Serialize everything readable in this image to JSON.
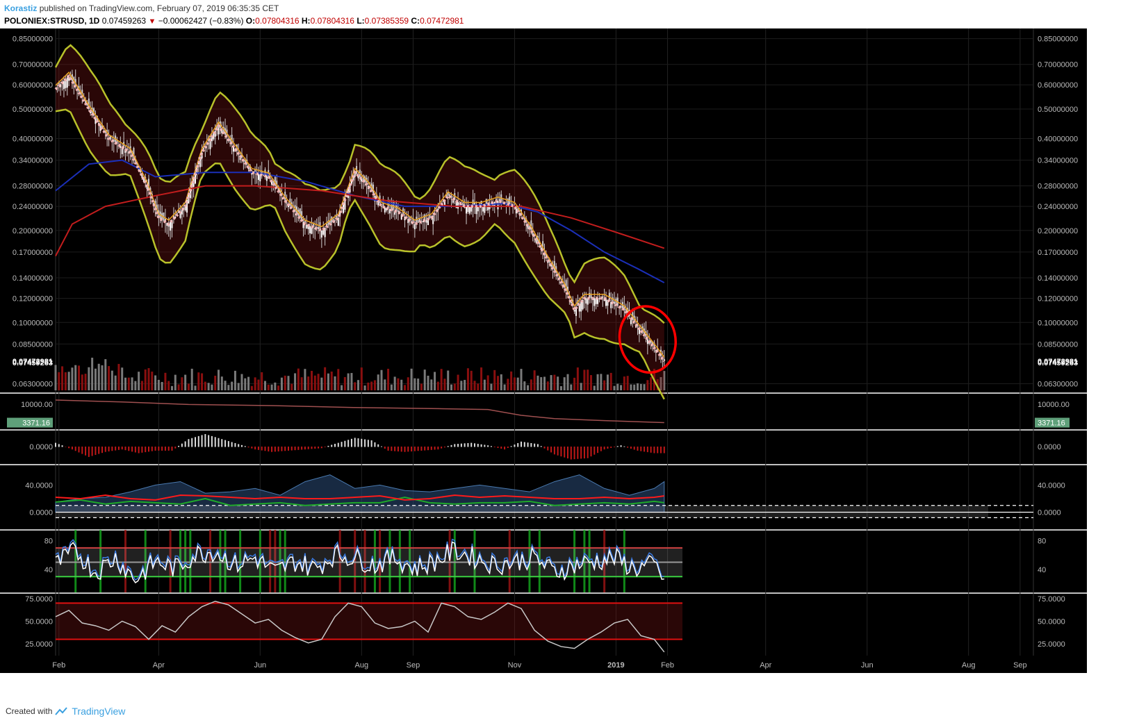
{
  "header": {
    "author": "Korastiz",
    "published_text": "published on TradingView.com, February 07, 2019 06:35:35 CET",
    "symbol": "POLONIEX:STRUSD, 1D",
    "last": "0.07459263",
    "change": "−0.00062427 (−0.83%)",
    "open_label": "O:",
    "open": "0.07804316",
    "high_label": "H:",
    "high": "0.07804316",
    "low_label": "L:",
    "low": "0.07385359",
    "close_label": "C:",
    "close": "0.07472981"
  },
  "footer": {
    "created_with": "Created with",
    "brand": "TradingView"
  },
  "colors": {
    "background": "#000000",
    "up": "#ffffff",
    "down": "#d0d0d0",
    "envelope": "#b8c12a",
    "ma_blue": "#1b2fb8",
    "ma_red": "#c21d1d",
    "center_line": "#f2b6b6",
    "orange": "#e6a020",
    "annotation": "#ff0000"
  },
  "chart_data": [
    {
      "type": "line",
      "pane": "price",
      "scale": "log",
      "ylim": [
        0.059,
        0.88
      ],
      "price_ticks": [
        "0.85000000",
        "0.70000000",
        "0.60000000",
        "0.50000000",
        "0.40000000",
        "0.34000000",
        "0.28000000",
        "0.24000000",
        "0.20000000",
        "0.17000000",
        "0.14000000",
        "0.12000000",
        "0.10000000",
        "0.08500000",
        "0.06300000"
      ],
      "price_tick_values": [
        0.85,
        0.7,
        0.6,
        0.5,
        0.4,
        0.34,
        0.28,
        0.24,
        0.2,
        0.17,
        0.14,
        0.12,
        0.1,
        0.085,
        0.063
      ],
      "last_labels": [
        "0.07472981",
        "0.07459263"
      ],
      "last_label_values": [
        0.0747,
        0.0739
      ],
      "x_labels": [
        "Feb",
        "Apr",
        "Jun",
        "Aug",
        "Sep",
        "Nov",
        "2019",
        "Feb",
        "Apr",
        "Jun",
        "Aug",
        "Sep"
      ],
      "x_label_days": [
        2,
        62,
        123,
        184,
        215,
        276,
        337,
        368,
        427,
        488,
        549,
        580
      ],
      "price_x": [
        0,
        8,
        20,
        32,
        45,
        55,
        62,
        68,
        78,
        88,
        98,
        108,
        118,
        128,
        138,
        150,
        160,
        170,
        180,
        188,
        196,
        206,
        216,
        226,
        236,
        246,
        256,
        266,
        276,
        286,
        296,
        306,
        312,
        318,
        324,
        330,
        336,
        342,
        348,
        356,
        362,
        366
      ],
      "close": [
        0.58,
        0.64,
        0.5,
        0.4,
        0.36,
        0.28,
        0.22,
        0.21,
        0.24,
        0.36,
        0.44,
        0.37,
        0.31,
        0.3,
        0.25,
        0.21,
        0.2,
        0.22,
        0.31,
        0.28,
        0.24,
        0.23,
        0.21,
        0.22,
        0.26,
        0.24,
        0.24,
        0.25,
        0.24,
        0.2,
        0.16,
        0.13,
        0.11,
        0.12,
        0.12,
        0.12,
        0.115,
        0.11,
        0.1,
        0.088,
        0.08,
        0.0747
      ],
      "series_ma_blue_x": [
        0,
        20,
        40,
        60,
        90,
        120,
        150,
        180,
        210,
        240,
        270,
        290,
        310,
        330,
        350,
        366
      ],
      "series_ma_blue": [
        0.27,
        0.33,
        0.34,
        0.3,
        0.31,
        0.31,
        0.29,
        0.26,
        0.24,
        0.24,
        0.245,
        0.23,
        0.2,
        0.17,
        0.15,
        0.135
      ],
      "series_ma_red_x": [
        0,
        10,
        30,
        60,
        90,
        120,
        160,
        200,
        240,
        280,
        310,
        340,
        366
      ],
      "series_ma_red": [
        0.165,
        0.21,
        0.24,
        0.26,
        0.28,
        0.28,
        0.27,
        0.25,
        0.24,
        0.24,
        0.22,
        0.195,
        0.175
      ],
      "annotation": "ellipse"
    },
    {
      "type": "bar",
      "pane": "indicator-1",
      "tick_labels": [
        "10000.00"
      ],
      "last_value": "3371.16",
      "line_x": [
        0,
        40,
        80,
        130,
        180,
        230,
        260,
        280,
        300,
        330,
        366
      ],
      "values": [
        11500,
        10800,
        9900,
        9500,
        8800,
        8400,
        8100,
        6000,
        4800,
        4100,
        3371.16
      ]
    },
    {
      "type": "bar",
      "pane": "histogram",
      "tick_labels": [
        "0.0000"
      ],
      "x": [
        0,
        10,
        20,
        30,
        40,
        50,
        60,
        70,
        80,
        90,
        100,
        110,
        120,
        130,
        140,
        150,
        160,
        170,
        180,
        190,
        200,
        210,
        220,
        230,
        240,
        250,
        260,
        270,
        280,
        290,
        300,
        310,
        320,
        330,
        340,
        350,
        360,
        366
      ],
      "values": [
        0.3,
        -0.2,
        -0.8,
        -0.4,
        -0.2,
        -0.5,
        -0.3,
        -0.3,
        0.6,
        1.0,
        0.6,
        0.2,
        -0.2,
        -0.4,
        -0.3,
        -0.2,
        -0.1,
        0.3,
        0.7,
        0.5,
        -0.3,
        -0.4,
        -0.3,
        -0.2,
        0.2,
        0.3,
        0.1,
        -0.2,
        0.4,
        0.2,
        -0.6,
        -1.0,
        -0.9,
        -0.2,
        0.1,
        -0.3,
        -0.5,
        -0.5
      ]
    },
    {
      "type": "line",
      "pane": "dmi",
      "tick_labels": [
        "40.0000",
        "0.0000"
      ],
      "tick_values": [
        40,
        0
      ],
      "ylim": [
        -25,
        70
      ],
      "x": [
        0,
        15,
        30,
        45,
        60,
        75,
        90,
        105,
        120,
        135,
        150,
        165,
        180,
        195,
        210,
        225,
        240,
        255,
        270,
        285,
        300,
        315,
        330,
        345,
        360,
        366
      ],
      "adx": [
        15,
        20,
        22,
        30,
        40,
        45,
        28,
        30,
        35,
        25,
        45,
        55,
        35,
        40,
        32,
        30,
        35,
        40,
        35,
        30,
        45,
        55,
        35,
        25,
        35,
        45
      ],
      "plus_di": [
        22,
        20,
        25,
        20,
        18,
        25,
        24,
        22,
        20,
        22,
        20,
        20,
        22,
        24,
        18,
        20,
        25,
        22,
        24,
        22,
        20,
        20,
        22,
        20,
        22,
        24
      ],
      "minus_di": [
        15,
        18,
        12,
        16,
        14,
        12,
        20,
        10,
        12,
        14,
        10,
        12,
        14,
        14,
        22,
        14,
        12,
        14,
        14,
        16,
        10,
        12,
        14,
        12,
        16,
        14
      ],
      "reference_lines": [
        10,
        -8
      ]
    },
    {
      "type": "line",
      "pane": "stochastic",
      "tick_labels": [
        "80",
        "40"
      ],
      "tick_values": [
        80,
        40
      ],
      "ylim": [
        8,
        95
      ],
      "band_lines": [
        70,
        50,
        30
      ],
      "x": [
        0,
        12,
        24,
        36,
        48,
        60,
        72,
        84,
        96,
        108,
        120,
        132,
        144,
        156,
        168,
        180,
        192,
        204,
        216,
        228,
        240,
        252,
        264,
        276,
        288,
        300,
        312,
        324,
        336,
        348,
        360,
        366
      ],
      "values": [
        50,
        70,
        40,
        60,
        30,
        55,
        45,
        65,
        70,
        50,
        60,
        40,
        55,
        45,
        65,
        60,
        50,
        60,
        45,
        55,
        70,
        60,
        50,
        55,
        60,
        40,
        50,
        55,
        60,
        45,
        50,
        30
      ]
    },
    {
      "type": "line",
      "pane": "rsi",
      "tick_labels": [
        "75.0000",
        "50.0000",
        "25.0000"
      ],
      "tick_values": [
        75,
        50,
        25
      ],
      "ylim": [
        12,
        81
      ],
      "band_lines": [
        70,
        30
      ],
      "x": [
        0,
        8,
        16,
        24,
        32,
        40,
        48,
        56,
        64,
        72,
        80,
        88,
        96,
        104,
        112,
        120,
        128,
        136,
        144,
        152,
        160,
        168,
        176,
        184,
        192,
        200,
        208,
        216,
        224,
        232,
        240,
        248,
        256,
        264,
        272,
        280,
        288,
        296,
        304,
        312,
        320,
        328,
        336,
        344,
        352,
        360,
        366
      ],
      "values": [
        55,
        62,
        48,
        45,
        40,
        50,
        44,
        30,
        45,
        38,
        55,
        66,
        72,
        68,
        58,
        48,
        52,
        40,
        32,
        26,
        30,
        55,
        70,
        66,
        48,
        42,
        44,
        50,
        38,
        70,
        66,
        55,
        52,
        60,
        70,
        64,
        40,
        28,
        22,
        20,
        30,
        38,
        48,
        52,
        34,
        30,
        16
      ]
    }
  ]
}
